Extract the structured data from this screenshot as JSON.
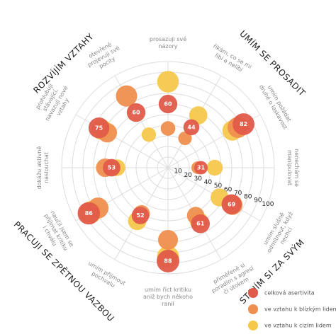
{
  "chart_data": {
    "type": "polar-bubble",
    "categories": [
      "prosazuji své názory",
      "říkám, co se mi líbí a nelíbí",
      "umím požádat druhé o laskavost",
      "nenechám se manipulovat",
      "umím slušně odmítnout, když nechci",
      "přiměřeně si poradím s agresí či útokem",
      "umím říct kritiku aniž bych někoho ranil",
      "umím přijmout pochvalu",
      "naučil jsem se přijímat kritiku i chválu",
      "dokážu aktivně naslouchat",
      "prohlubuji stávající, navazuji nové vztahy",
      "otevřeně projevuji své pocity"
    ],
    "groups": [
      "UMÍM SE PROSADIT",
      "STOJÍM SI ZA SVÝM",
      "PRACUJI SE ZPĚTNOU VAZBOU",
      "ROZVÍJÍM VZTAHY"
    ],
    "rlim": [
      0,
      100
    ],
    "rticks": [
      10,
      20,
      30,
      40,
      50,
      60,
      70,
      80,
      90,
      100
    ],
    "series": [
      {
        "name": "ve vztahu k cizím lidem",
        "color": "#f5c84c",
        "values": [
          81,
          57,
          70,
          44,
          56,
          58,
          84,
          58,
          84,
          48,
          72,
          36
        ]
      },
      {
        "name": "ve vztahu k blízkým lidem",
        "color": "#ef8f4f",
        "values": [
          37,
          32,
          76,
          28,
          70,
          52,
          68,
          50,
          76,
          59,
          66,
          78
        ]
      },
      {
        "name": "celková asertivita",
        "color": "#e05a4a",
        "values": [
          60,
          44,
          82,
          31,
          69,
          61,
          88,
          52,
          86,
          53,
          75,
          60
        ],
        "labelled": true
      }
    ]
  }
}
